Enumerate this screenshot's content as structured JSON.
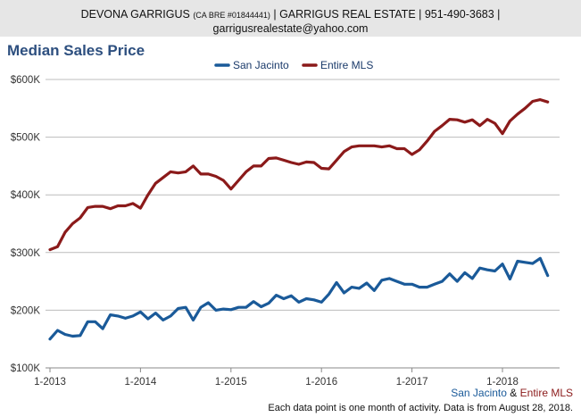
{
  "header": {
    "agent_name": "DEVONA GARRIGUS",
    "license": "(CA BRE #01844441)",
    "rest": "| GARRIGUS REAL ESTATE | 951-490-3683 |",
    "email": "garrigusrealestate@yahoo.com"
  },
  "chart_data": {
    "type": "line",
    "title": "Median Sales Price",
    "ylim": [
      100000,
      600000
    ],
    "y_ticks": [
      100000,
      200000,
      300000,
      400000,
      500000,
      600000
    ],
    "y_tick_labels": [
      "$100K",
      "$200K",
      "$300K",
      "$400K",
      "$500K",
      "$600K"
    ],
    "x_tick_labels": [
      "1-2013",
      "1-2014",
      "1-2015",
      "1-2016",
      "1-2017",
      "1-2018"
    ],
    "x": [
      "2013-01",
      "2013-02",
      "2013-03",
      "2013-04",
      "2013-05",
      "2013-06",
      "2013-07",
      "2013-08",
      "2013-09",
      "2013-10",
      "2013-11",
      "2013-12",
      "2014-01",
      "2014-02",
      "2014-03",
      "2014-04",
      "2014-05",
      "2014-06",
      "2014-07",
      "2014-08",
      "2014-09",
      "2014-10",
      "2014-11",
      "2014-12",
      "2015-01",
      "2015-02",
      "2015-03",
      "2015-04",
      "2015-05",
      "2015-06",
      "2015-07",
      "2015-08",
      "2015-09",
      "2015-10",
      "2015-11",
      "2015-12",
      "2016-01",
      "2016-02",
      "2016-03",
      "2016-04",
      "2016-05",
      "2016-06",
      "2016-07",
      "2016-08",
      "2016-09",
      "2016-10",
      "2016-11",
      "2016-12",
      "2017-01",
      "2017-02",
      "2017-03",
      "2017-04",
      "2017-05",
      "2017-06",
      "2017-07",
      "2017-08",
      "2017-09",
      "2017-10",
      "2017-11",
      "2017-12",
      "2018-01",
      "2018-02",
      "2018-03",
      "2018-04",
      "2018-05",
      "2018-06",
      "2018-07"
    ],
    "legend_position": "top-center",
    "grid": true,
    "series": [
      {
        "name": "San Jacinto",
        "color": "#1a5a99",
        "values": [
          150000,
          165000,
          158000,
          155000,
          156000,
          180000,
          180000,
          168000,
          192000,
          190000,
          186000,
          190000,
          197000,
          185000,
          195000,
          183000,
          190000,
          203000,
          205000,
          183000,
          205000,
          213000,
          200000,
          202000,
          201000,
          205000,
          205000,
          215000,
          206000,
          212000,
          226000,
          220000,
          225000,
          214000,
          220000,
          218000,
          214000,
          228000,
          248000,
          230000,
          240000,
          238000,
          247000,
          234000,
          252000,
          255000,
          250000,
          245000,
          245000,
          240000,
          240000,
          245000,
          250000,
          263000,
          250000,
          265000,
          255000,
          273000,
          270000,
          268000,
          280000,
          254000,
          285000,
          283000,
          281000,
          290000,
          260000
        ]
      },
      {
        "name": "Entire MLS",
        "color": "#8b1a1a",
        "values": [
          305000,
          310000,
          335000,
          350000,
          360000,
          378000,
          380000,
          380000,
          376000,
          381000,
          381000,
          385000,
          377000,
          400000,
          420000,
          430000,
          440000,
          438000,
          440000,
          450000,
          436000,
          436000,
          432000,
          425000,
          410000,
          425000,
          440000,
          450000,
          450000,
          463000,
          464000,
          460000,
          456000,
          453000,
          457000,
          456000,
          446000,
          445000,
          460000,
          475000,
          483000,
          485000,
          485000,
          485000,
          483000,
          485000,
          480000,
          480000,
          470000,
          478000,
          493000,
          510000,
          520000,
          531000,
          530000,
          526000,
          530000,
          520000,
          531000,
          524000,
          506000,
          528000,
          540000,
          550000,
          562000,
          565000,
          561000
        ]
      }
    ]
  },
  "attribution": {
    "series_a": "San Jacinto",
    "ampersand": "&",
    "series_b": "Entire MLS",
    "color_a": "#1a5a99",
    "color_b": "#8b1a1a"
  },
  "footnote": "Each data point is one month of activity. Data is from August 28, 2018."
}
